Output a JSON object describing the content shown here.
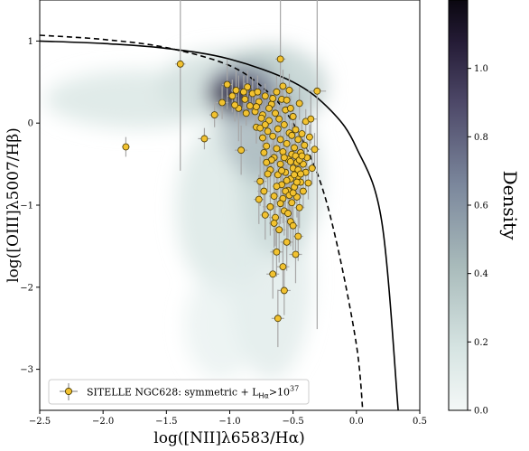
{
  "chart_data": {
    "type": "scatter",
    "xlabel": "log([NII]λ6583/Hα)",
    "ylabel": "log([OIII]λ5007/Hβ)",
    "xlim": [
      -2.5,
      0.5
    ],
    "ylim": [
      -3.5,
      1.5
    ],
    "x_ticks": [
      -2.5,
      -2.0,
      -1.5,
      -1.0,
      -0.5,
      0.0,
      0.5
    ],
    "y_ticks": [
      -3,
      -2,
      -1,
      0,
      1
    ],
    "x_tick_labels": [
      "−2.5",
      "−2.0",
      "−1.5",
      "−1.0",
      "−0.5",
      "0.0",
      "0.5"
    ],
    "y_tick_labels": [
      "−3",
      "−2",
      "−1",
      "0",
      "1"
    ],
    "legend": {
      "position": "bottom-left",
      "label": "SITELLE NGC628: symmetric + L",
      "label_sub": "Hα",
      "label_mid": ">10",
      "label_sup": "37"
    },
    "colorbar": {
      "label": "Density",
      "range": [
        0.0,
        1.2
      ],
      "ticks": [
        0.0,
        0.2,
        0.4,
        0.6,
        0.8,
        1.0
      ],
      "tick_labels": [
        "0.0",
        "0.2",
        "0.4",
        "0.6",
        "0.8",
        "1.0"
      ]
    },
    "curves": [
      {
        "style": "solid",
        "kind": "Kewley2001",
        "points": [
          [
            -2.5,
            1.0
          ],
          [
            -2.0,
            0.97
          ],
          [
            -1.5,
            0.91
          ],
          [
            -1.0,
            0.78
          ],
          [
            -0.5,
            0.5
          ],
          [
            -0.2,
            0.15
          ],
          [
            0.0,
            -0.3
          ],
          [
            0.2,
            -1.2
          ],
          [
            0.33,
            -3.5
          ]
        ]
      },
      {
        "style": "dashed",
        "kind": "Kauffmann2003",
        "points": [
          [
            -2.5,
            1.07
          ],
          [
            -2.0,
            1.02
          ],
          [
            -1.5,
            0.92
          ],
          [
            -1.0,
            0.7
          ],
          [
            -0.7,
            0.38
          ],
          [
            -0.5,
            0.0
          ],
          [
            -0.3,
            -0.65
          ],
          [
            -0.15,
            -1.5
          ],
          [
            0.0,
            -2.7
          ],
          [
            0.05,
            -3.5
          ]
        ]
      }
    ],
    "colors": {
      "marker": "#f2c230",
      "marker_edge": "#4a3a00",
      "error_bar": "#a7a7a7",
      "density_low": "#e7f0ef",
      "density_high": "#191025"
    },
    "points": [
      {
        "x": -1.82,
        "y": -0.29,
        "xerr": 0.03,
        "yerr": 0.12
      },
      {
        "x": -1.39,
        "y": 0.72,
        "xerr": 0.04,
        "yerr": 1.3
      },
      {
        "x": -1.2,
        "y": -0.19,
        "xerr": 0.05,
        "yerr": 0.13
      },
      {
        "x": -1.12,
        "y": 0.1,
        "xerr": 0.04,
        "yerr": 0.15
      },
      {
        "x": -1.06,
        "y": 0.25,
        "xerr": 0.05,
        "yerr": 0.2
      },
      {
        "x": -1.02,
        "y": 0.47,
        "xerr": 0.04,
        "yerr": 0.3
      },
      {
        "x": -0.98,
        "y": 0.33,
        "xerr": 0.04,
        "yerr": 0.2
      },
      {
        "x": -0.95,
        "y": 0.4,
        "xerr": 0.04,
        "yerr": 0.25
      },
      {
        "x": -0.93,
        "y": 0.18,
        "xerr": 0.04,
        "yerr": 0.4
      },
      {
        "x": -0.91,
        "y": -0.33,
        "xerr": 0.05,
        "yerr": 0.3
      },
      {
        "x": -0.88,
        "y": 0.29,
        "xerr": 0.03,
        "yerr": 0.2
      },
      {
        "x": -0.86,
        "y": 0.44,
        "xerr": 0.03,
        "yerr": 0.2
      },
      {
        "x": -0.84,
        "y": 0.21,
        "xerr": 0.03,
        "yerr": 0.15
      },
      {
        "x": -0.82,
        "y": 0.36,
        "xerr": 0.03,
        "yerr": 0.2
      },
      {
        "x": -0.8,
        "y": 0.14,
        "xerr": 0.03,
        "yerr": 0.2
      },
      {
        "x": -0.79,
        "y": -0.05,
        "xerr": 0.04,
        "yerr": 0.2
      },
      {
        "x": -0.77,
        "y": 0.26,
        "xerr": 0.03,
        "yerr": 0.15
      },
      {
        "x": -0.76,
        "y": -0.71,
        "xerr": 0.05,
        "yerr": 0.3
      },
      {
        "x": -0.74,
        "y": 0.1,
        "xerr": 0.03,
        "yerr": 0.2
      },
      {
        "x": -0.73,
        "y": -0.83,
        "xerr": 0.05,
        "yerr": 0.3
      },
      {
        "x": -0.72,
        "y": 0.33,
        "xerr": 0.03,
        "yerr": 0.15
      },
      {
        "x": -0.71,
        "y": -0.28,
        "xerr": 0.04,
        "yerr": 0.2
      },
      {
        "x": -0.7,
        "y": -0.1,
        "xerr": 0.04,
        "yerr": 0.2
      },
      {
        "x": -0.69,
        "y": 0.03,
        "xerr": 0.03,
        "yerr": 0.15
      },
      {
        "x": -0.68,
        "y": -1.02,
        "xerr": 0.06,
        "yerr": 0.35
      },
      {
        "x": -0.68,
        "y": -0.57,
        "xerr": 0.04,
        "yerr": 0.25
      },
      {
        "x": -0.67,
        "y": 0.23,
        "xerr": 0.03,
        "yerr": 0.15
      },
      {
        "x": -0.66,
        "y": -0.16,
        "xerr": 0.03,
        "yerr": 0.2
      },
      {
        "x": -0.65,
        "y": -0.42,
        "xerr": 0.04,
        "yerr": 0.25
      },
      {
        "x": -0.65,
        "y": -0.89,
        "xerr": 0.04,
        "yerr": 0.3
      },
      {
        "x": -0.64,
        "y": 0.12,
        "xerr": 0.03,
        "yerr": 0.15
      },
      {
        "x": -0.64,
        "y": -1.15,
        "xerr": 0.05,
        "yerr": 0.35
      },
      {
        "x": -0.63,
        "y": 0.38,
        "xerr": 0.03,
        "yerr": 0.2
      },
      {
        "x": -0.63,
        "y": -0.31,
        "xerr": 0.03,
        "yerr": 0.2
      },
      {
        "x": -0.62,
        "y": -0.07,
        "xerr": 0.03,
        "yerr": 0.15
      },
      {
        "x": -0.62,
        "y": -0.63,
        "xerr": 0.04,
        "yerr": 0.25
      },
      {
        "x": -0.61,
        "y": 0.05,
        "xerr": 0.03,
        "yerr": 0.15
      },
      {
        "x": -0.61,
        "y": -1.3,
        "xerr": 0.05,
        "yerr": 0.4
      },
      {
        "x": -0.6,
        "y": 0.78,
        "xerr": 0.04,
        "yerr": 0.8
      },
      {
        "x": -0.6,
        "y": -0.2,
        "xerr": 0.03,
        "yerr": 0.15
      },
      {
        "x": -0.6,
        "y": -0.5,
        "xerr": 0.03,
        "yerr": 0.2
      },
      {
        "x": -0.59,
        "y": -0.75,
        "xerr": 0.04,
        "yerr": 0.25
      },
      {
        "x": -0.59,
        "y": 0.29,
        "xerr": 0.03,
        "yerr": 0.15
      },
      {
        "x": -0.58,
        "y": -0.92,
        "xerr": 0.04,
        "yerr": 0.3
      },
      {
        "x": -0.58,
        "y": -0.35,
        "xerr": 0.03,
        "yerr": 0.2
      },
      {
        "x": -0.57,
        "y": -0.02,
        "xerr": 0.03,
        "yerr": 0.15
      },
      {
        "x": -0.57,
        "y": -1.07,
        "xerr": 0.04,
        "yerr": 0.3
      },
      {
        "x": -0.56,
        "y": -0.6,
        "xerr": 0.03,
        "yerr": 0.2
      },
      {
        "x": -0.56,
        "y": 0.16,
        "xerr": 0.03,
        "yerr": 0.15
      },
      {
        "x": -0.55,
        "y": -0.25,
        "xerr": 0.03,
        "yerr": 0.15
      },
      {
        "x": -0.55,
        "y": -1.45,
        "xerr": 0.05,
        "yerr": 0.35
      },
      {
        "x": -0.54,
        "y": -0.44,
        "xerr": 0.03,
        "yerr": 0.2
      },
      {
        "x": -0.54,
        "y": -0.82,
        "xerr": 0.04,
        "yerr": 0.25
      },
      {
        "x": -0.53,
        "y": 0.4,
        "xerr": 0.04,
        "yerr": 0.2
      },
      {
        "x": -0.53,
        "y": -0.12,
        "xerr": 0.03,
        "yerr": 0.15
      },
      {
        "x": -0.52,
        "y": -0.68,
        "xerr": 0.03,
        "yerr": 0.2
      },
      {
        "x": -0.52,
        "y": -1.2,
        "xerr": 0.04,
        "yerr": 0.3
      },
      {
        "x": -0.51,
        "y": -0.38,
        "xerr": 0.03,
        "yerr": 0.2
      },
      {
        "x": -0.51,
        "y": -0.97,
        "xerr": 0.04,
        "yerr": 0.25
      },
      {
        "x": -0.5,
        "y": -0.55,
        "xerr": 0.03,
        "yerr": 0.2
      },
      {
        "x": -0.5,
        "y": 0.08,
        "xerr": 0.03,
        "yerr": 0.15
      },
      {
        "x": -0.49,
        "y": -0.3,
        "xerr": 0.03,
        "yerr": 0.15
      },
      {
        "x": -0.49,
        "y": -0.78,
        "xerr": 0.03,
        "yerr": 0.2
      },
      {
        "x": -0.48,
        "y": -0.08,
        "xerr": 0.03,
        "yerr": 0.15
      },
      {
        "x": -0.48,
        "y": -1.6,
        "xerr": 0.05,
        "yerr": 0.35
      },
      {
        "x": -0.47,
        "y": -0.48,
        "xerr": 0.03,
        "yerr": 0.2
      },
      {
        "x": -0.47,
        "y": -0.9,
        "xerr": 0.03,
        "yerr": 0.25
      },
      {
        "x": -0.46,
        "y": -0.2,
        "xerr": 0.03,
        "yerr": 0.15
      },
      {
        "x": -0.46,
        "y": -0.65,
        "xerr": 0.03,
        "yerr": 0.2
      },
      {
        "x": -0.45,
        "y": 0.24,
        "xerr": 0.03,
        "yerr": 0.2
      },
      {
        "x": -0.45,
        "y": -1.03,
        "xerr": 0.04,
        "yerr": 0.25
      },
      {
        "x": -0.44,
        "y": -0.36,
        "xerr": 0.03,
        "yerr": 0.2
      },
      {
        "x": -0.44,
        "y": -0.72,
        "xerr": 0.03,
        "yerr": 0.2
      },
      {
        "x": -0.43,
        "y": -0.13,
        "xerr": 0.03,
        "yerr": 0.15
      },
      {
        "x": -0.42,
        "y": -0.5,
        "xerr": 0.03,
        "yerr": 0.2
      },
      {
        "x": -0.42,
        "y": -0.83,
        "xerr": 0.03,
        "yerr": 0.2
      },
      {
        "x": -0.41,
        "y": -0.27,
        "xerr": 0.03,
        "yerr": 0.15
      },
      {
        "x": -0.4,
        "y": -0.6,
        "xerr": 0.03,
        "yerr": 0.2
      },
      {
        "x": -0.4,
        "y": 0.02,
        "xerr": 0.03,
        "yerr": 0.15
      },
      {
        "x": -0.39,
        "y": -0.42,
        "xerr": 0.03,
        "yerr": 0.2
      },
      {
        "x": -0.38,
        "y": -0.73,
        "xerr": 0.03,
        "yerr": 0.2
      },
      {
        "x": -0.37,
        "y": -0.17,
        "xerr": 0.03,
        "yerr": 0.15
      },
      {
        "x": -0.36,
        "y": 0.05,
        "xerr": 0.05,
        "yerr": 0.3
      },
      {
        "x": -0.35,
        "y": -0.55,
        "xerr": 0.03,
        "yerr": 0.2
      },
      {
        "x": -0.33,
        "y": -0.32,
        "xerr": 0.04,
        "yerr": 0.2
      },
      {
        "x": -0.31,
        "y": 0.39,
        "xerr": 0.07,
        "yerr": 2.9
      },
      {
        "x": -0.58,
        "y": -1.75,
        "xerr": 0.05,
        "yerr": 0.3
      },
      {
        "x": -0.57,
        "y": -2.04,
        "xerr": 0.05,
        "yerr": 0.3
      },
      {
        "x": -0.66,
        "y": -1.84,
        "xerr": 0.05,
        "yerr": 0.3
      },
      {
        "x": -0.62,
        "y": -2.38,
        "xerr": 0.05,
        "yerr": 0.35
      },
      {
        "x": -0.59,
        "y": -0.58,
        "xerr": 0.03,
        "yerr": 0.2
      },
      {
        "x": -0.57,
        "y": -0.42,
        "xerr": 0.03,
        "yerr": 0.2
      },
      {
        "x": -0.56,
        "y": -0.83,
        "xerr": 0.03,
        "yerr": 0.2
      },
      {
        "x": -0.55,
        "y": -0.7,
        "xerr": 0.03,
        "yerr": 0.2
      },
      {
        "x": -0.53,
        "y": -0.88,
        "xerr": 0.03,
        "yerr": 0.2
      },
      {
        "x": -0.52,
        "y": -0.47,
        "xerr": 0.03,
        "yerr": 0.2
      },
      {
        "x": -0.51,
        "y": -0.15,
        "xerr": 0.03,
        "yerr": 0.15
      },
      {
        "x": -0.5,
        "y": -0.85,
        "xerr": 0.03,
        "yerr": 0.2
      },
      {
        "x": -0.49,
        "y": -0.63,
        "xerr": 0.03,
        "yerr": 0.2
      },
      {
        "x": -0.48,
        "y": -0.4,
        "xerr": 0.03,
        "yerr": 0.2
      },
      {
        "x": -0.47,
        "y": -0.72,
        "xerr": 0.03,
        "yerr": 0.2
      },
      {
        "x": -0.46,
        "y": -0.57,
        "xerr": 0.03,
        "yerr": 0.2
      },
      {
        "x": -0.45,
        "y": -0.45,
        "xerr": 0.03,
        "yerr": 0.2
      },
      {
        "x": -0.44,
        "y": -0.62,
        "xerr": 0.03,
        "yerr": 0.2
      },
      {
        "x": -0.43,
        "y": -0.4,
        "xerr": 0.03,
        "yerr": 0.2
      },
      {
        "x": -0.67,
        "y": -0.45,
        "xerr": 0.03,
        "yerr": 0.2
      },
      {
        "x": -0.7,
        "y": -0.62,
        "xerr": 0.03,
        "yerr": 0.2
      },
      {
        "x": -0.71,
        "y": -0.48,
        "xerr": 0.03,
        "yerr": 0.2
      },
      {
        "x": -0.73,
        "y": -0.36,
        "xerr": 0.03,
        "yerr": 0.2
      },
      {
        "x": -0.74,
        "y": -0.18,
        "xerr": 0.03,
        "yerr": 0.15
      },
      {
        "x": -0.76,
        "y": -0.06,
        "xerr": 0.03,
        "yerr": 0.15
      },
      {
        "x": -0.75,
        "y": 0.06,
        "xerr": 0.03,
        "yerr": 0.15
      },
      {
        "x": -0.69,
        "y": 0.18,
        "xerr": 0.03,
        "yerr": 0.15
      },
      {
        "x": -0.66,
        "y": 0.3,
        "xerr": 0.03,
        "yerr": 0.15
      },
      {
        "x": -0.58,
        "y": 0.45,
        "xerr": 0.03,
        "yerr": 0.2
      },
      {
        "x": -0.55,
        "y": 0.28,
        "xerr": 0.03,
        "yerr": 0.15
      },
      {
        "x": -0.52,
        "y": 0.18,
        "xerr": 0.03,
        "yerr": 0.15
      },
      {
        "x": -0.89,
        "y": 0.38,
        "xerr": 0.03,
        "yerr": 0.2
      },
      {
        "x": -0.96,
        "y": 0.22,
        "xerr": 0.03,
        "yerr": 0.2
      },
      {
        "x": -0.79,
        "y": 0.2,
        "xerr": 0.03,
        "yerr": 0.15
      },
      {
        "x": -0.78,
        "y": 0.38,
        "xerr": 0.03,
        "yerr": 0.2
      },
      {
        "x": -0.87,
        "y": 0.12,
        "xerr": 0.03,
        "yerr": 0.15
      },
      {
        "x": -0.72,
        "y": -0.02,
        "xerr": 0.03,
        "yerr": 0.15
      },
      {
        "x": -0.63,
        "y": -0.77,
        "xerr": 0.03,
        "yerr": 0.2
      },
      {
        "x": -0.6,
        "y": -0.98,
        "xerr": 0.03,
        "yerr": 0.25
      },
      {
        "x": -0.54,
        "y": -1.1,
        "xerr": 0.04,
        "yerr": 0.3
      },
      {
        "x": -0.5,
        "y": -1.25,
        "xerr": 0.04,
        "yerr": 0.3
      },
      {
        "x": -0.65,
        "y": -1.22,
        "xerr": 0.04,
        "yerr": 0.3
      },
      {
        "x": -0.72,
        "y": -1.12,
        "xerr": 0.04,
        "yerr": 0.3
      },
      {
        "x": -0.77,
        "y": -0.93,
        "xerr": 0.04,
        "yerr": 0.3
      },
      {
        "x": -0.46,
        "y": -1.38,
        "xerr": 0.04,
        "yerr": 0.3
      },
      {
        "x": -0.63,
        "y": -1.57,
        "xerr": 0.05,
        "yerr": 0.3
      }
    ]
  }
}
